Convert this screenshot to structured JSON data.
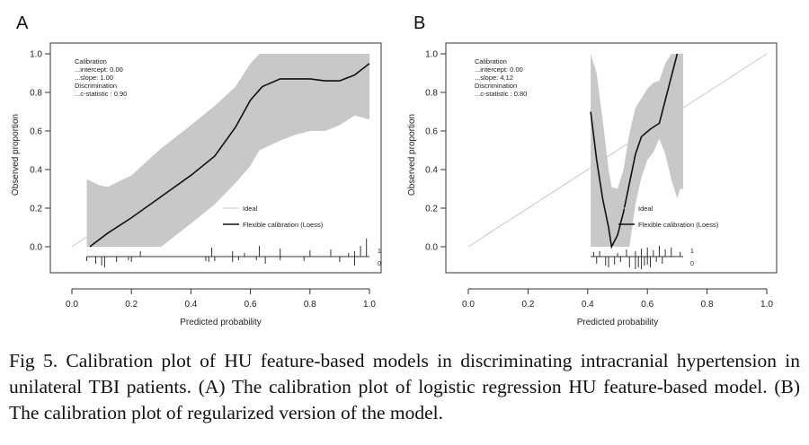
{
  "chart_data": [
    {
      "type": "line",
      "panel_label": "A",
      "xlabel": "Predicted probability",
      "ylabel": "Observed proportion",
      "xlim": [
        0.0,
        1.0
      ],
      "ylim": [
        0.0,
        1.0
      ],
      "x_ticks": [
        "0.0",
        "0.2",
        "0.4",
        "0.6",
        "0.8",
        "1.0"
      ],
      "y_ticks": [
        "0.0",
        "0.2",
        "0.4",
        "0.6",
        "0.8",
        "1.0"
      ],
      "grid": false,
      "legend_position": "center-right",
      "annotations": [
        "Calibration",
        "...intercept: 0.00",
        "...slope: 1.00",
        "Discrimination",
        "...c-statistic : 0.90"
      ],
      "series": [
        {
          "name": "Ideal",
          "x": [
            0.0,
            1.0
          ],
          "y": [
            0.0,
            1.0
          ],
          "color": "#c8c8c8"
        },
        {
          "name": "Flexible calibration (Loess)",
          "color": "#111111",
          "x": [
            0.06,
            0.12,
            0.2,
            0.3,
            0.4,
            0.48,
            0.55,
            0.6,
            0.64,
            0.7,
            0.75,
            0.8,
            0.85,
            0.9,
            0.95,
            1.0
          ],
          "y": [
            0.0,
            0.07,
            0.15,
            0.26,
            0.37,
            0.47,
            0.62,
            0.76,
            0.83,
            0.87,
            0.87,
            0.87,
            0.86,
            0.86,
            0.89,
            0.95
          ]
        }
      ],
      "confidence_band": {
        "x": [
          0.05,
          0.09,
          0.12,
          0.2,
          0.3,
          0.4,
          0.48,
          0.55,
          0.6,
          0.63,
          0.7,
          0.75,
          0.8,
          0.85,
          0.9,
          0.95,
          1.0
        ],
        "lower": [
          0.0,
          0.0,
          0.0,
          0.0,
          0.0,
          0.12,
          0.22,
          0.33,
          0.42,
          0.5,
          0.55,
          0.58,
          0.6,
          0.6,
          0.63,
          0.68,
          0.66
        ],
        "upper": [
          0.35,
          0.32,
          0.31,
          0.37,
          0.51,
          0.63,
          0.73,
          0.83,
          0.95,
          1.0,
          1.0,
          1.0,
          1.0,
          1.0,
          1.0,
          1.0,
          1.0
        ],
        "color": "#c8c8c8"
      },
      "rug": {
        "labels": [
          "1",
          "0"
        ],
        "events_x": [
          0.23,
          0.47,
          0.54,
          0.58,
          0.63,
          0.7,
          0.8,
          0.87,
          0.93,
          0.95,
          0.97,
          0.99
        ],
        "events_h": [
          6,
          10,
          6,
          4,
          12,
          9,
          7,
          8,
          4,
          6,
          12,
          20
        ],
        "nonevents_x": [
          0.05,
          0.08,
          0.1,
          0.11,
          0.15,
          0.19,
          0.2,
          0.45,
          0.46,
          0.48,
          0.54,
          0.56,
          0.62,
          0.65,
          0.7,
          0.78,
          0.9,
          0.95
        ],
        "nonevents_h": [
          5,
          8,
          10,
          12,
          6,
          4,
          6,
          5,
          6,
          5,
          6,
          4,
          4,
          8,
          4,
          5,
          6,
          10
        ]
      }
    },
    {
      "type": "line",
      "panel_label": "B",
      "xlabel": "Predicted probability",
      "ylabel": "Observed proportion",
      "xlim": [
        0.0,
        1.0
      ],
      "ylim": [
        0.0,
        1.0
      ],
      "x_ticks": [
        "0.0",
        "0.2",
        "0.4",
        "0.6",
        "0.8",
        "1.0"
      ],
      "y_ticks": [
        "0.0",
        "0.2",
        "0.4",
        "0.6",
        "0.8",
        "1.0"
      ],
      "grid": false,
      "legend_position": "center-right",
      "annotations": [
        "Calibration",
        "...intercept: 0.00",
        "...slope: 4.12",
        "Discrimination",
        "...c-statistic : 0.80"
      ],
      "series": [
        {
          "name": "Ideal",
          "x": [
            0.0,
            1.0
          ],
          "y": [
            0.0,
            1.0
          ],
          "color": "#c8c8c8"
        },
        {
          "name": "Flexible calibration (Loess)",
          "color": "#111111",
          "x": [
            0.41,
            0.43,
            0.45,
            0.47,
            0.48,
            0.5,
            0.52,
            0.54,
            0.56,
            0.58,
            0.61,
            0.64,
            0.66,
            0.68,
            0.7
          ],
          "y": [
            0.7,
            0.45,
            0.25,
            0.1,
            0.0,
            0.06,
            0.18,
            0.33,
            0.48,
            0.57,
            0.61,
            0.64,
            0.76,
            0.88,
            1.0
          ]
        }
      ],
      "confidence_band": {
        "x": [
          0.41,
          0.43,
          0.45,
          0.47,
          0.48,
          0.5,
          0.52,
          0.54,
          0.56,
          0.58,
          0.6,
          0.62,
          0.64,
          0.66,
          0.68,
          0.7,
          0.71,
          0.72
        ],
        "lower": [
          0.0,
          0.0,
          0.0,
          0.0,
          0.0,
          0.0,
          0.0,
          0.0,
          0.22,
          0.36,
          0.45,
          0.49,
          0.56,
          0.48,
          0.35,
          0.25,
          0.3,
          0.3
        ],
        "upper": [
          1.0,
          0.9,
          0.66,
          0.4,
          0.31,
          0.3,
          0.4,
          0.59,
          0.72,
          0.77,
          0.82,
          0.85,
          0.86,
          0.95,
          1.0,
          1.0,
          1.0,
          1.0
        ],
        "color": "#c8c8c8"
      },
      "rug": {
        "labels": [
          "1",
          "0"
        ],
        "events_x": [
          0.42,
          0.44,
          0.5,
          0.53,
          0.56,
          0.58,
          0.6,
          0.62,
          0.64,
          0.66,
          0.68,
          0.71
        ],
        "events_h": [
          5,
          6,
          4,
          8,
          6,
          9,
          10,
          7,
          12,
          8,
          10,
          5
        ],
        "nonevents_x": [
          0.43,
          0.46,
          0.47,
          0.49,
          0.51,
          0.54,
          0.56,
          0.57,
          0.58,
          0.59,
          0.6,
          0.61,
          0.63,
          0.65
        ],
        "nonevents_h": [
          8,
          10,
          12,
          9,
          6,
          12,
          14,
          12,
          14,
          10,
          9,
          12,
          6,
          8
        ]
      }
    }
  ],
  "caption": "Fig 5. Calibration plot of HU feature-based models in discriminating intracranial hypertension in unilateral TBI patients. (A) The calibration plot of logistic regression HU feature-based model. (B) The calibration plot of regularized version of the model."
}
